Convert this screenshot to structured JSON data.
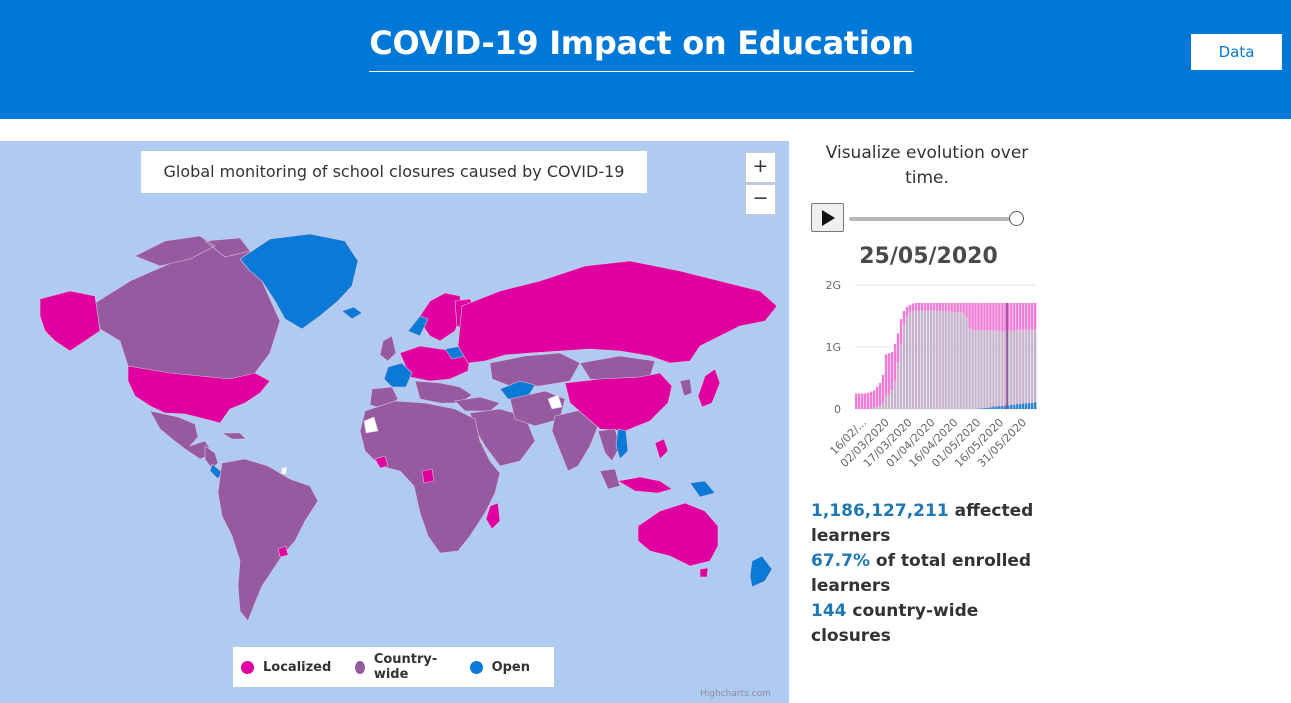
{
  "header": {
    "title": "COVID-19 Impact on Education",
    "data_button": "Data"
  },
  "map": {
    "title": "Global monitoring of school closures caused by COVID-19",
    "zoom_in": "+",
    "zoom_out": "−",
    "credits": "Highcharts.com",
    "legend": [
      {
        "label": "Localized",
        "color": "#e000a0"
      },
      {
        "label": "Country-wide",
        "color": "#955a9f"
      },
      {
        "label": "Open",
        "color": "#0a7ad6"
      }
    ],
    "colors": {
      "ocean": "#b0cbf2",
      "localized": "#e000a0",
      "country_wide": "#955a9f",
      "open": "#0a7ad6"
    }
  },
  "side": {
    "evolution_text": "Visualize evolution over time.",
    "date": "25/05/2020",
    "slider_value": 1.0
  },
  "chart_data": {
    "type": "bar",
    "y_ticks": [
      "2G",
      "1G",
      "0"
    ],
    "ylim": [
      0,
      2000000000
    ],
    "x_tick_labels": [
      "16/02/...",
      "02/03/2020",
      "17/03/2020",
      "01/04/2020",
      "16/04/2020",
      "01/05/2020",
      "16/05/2020",
      "31/05/2020"
    ],
    "series": [
      {
        "name": "Localized",
        "color": "#f07cd6"
      },
      {
        "name": "Country-wide",
        "color": "#c7b4cc"
      },
      {
        "name": "Open",
        "color": "#2a7fd0"
      }
    ],
    "points": [
      {
        "total": 0.25,
        "country_wide": 0.0,
        "open": 0.0
      },
      {
        "total": 0.25,
        "country_wide": 0.0,
        "open": 0.0
      },
      {
        "total": 0.25,
        "country_wide": 0.0,
        "open": 0.0
      },
      {
        "total": 0.25,
        "country_wide": 0.0,
        "open": 0.0
      },
      {
        "total": 0.26,
        "country_wide": 0.0,
        "open": 0.0
      },
      {
        "total": 0.28,
        "country_wide": 0.01,
        "open": 0.0
      },
      {
        "total": 0.3,
        "country_wide": 0.02,
        "open": 0.0
      },
      {
        "total": 0.36,
        "country_wide": 0.03,
        "open": 0.0
      },
      {
        "total": 0.42,
        "country_wide": 0.05,
        "open": 0.0
      },
      {
        "total": 0.55,
        "country_wide": 0.1,
        "open": 0.0
      },
      {
        "total": 0.88,
        "country_wide": 0.21,
        "open": 0.0
      },
      {
        "total": 0.9,
        "country_wide": 0.25,
        "open": 0.0
      },
      {
        "total": 0.92,
        "country_wide": 0.31,
        "open": 0.0
      },
      {
        "total": 1.05,
        "country_wide": 0.45,
        "open": 0.0
      },
      {
        "total": 1.22,
        "country_wide": 0.75,
        "open": 0.0
      },
      {
        "total": 1.45,
        "country_wide": 1.05,
        "open": 0.0
      },
      {
        "total": 1.58,
        "country_wide": 1.38,
        "open": 0.0
      },
      {
        "total": 1.65,
        "country_wide": 1.5,
        "open": 0.0
      },
      {
        "total": 1.68,
        "country_wide": 1.55,
        "open": 0.0
      },
      {
        "total": 1.7,
        "country_wide": 1.58,
        "open": 0.0
      },
      {
        "total": 1.71,
        "country_wide": 1.59,
        "open": 0.0
      },
      {
        "total": 1.71,
        "country_wide": 1.59,
        "open": 0.0
      },
      {
        "total": 1.71,
        "country_wide": 1.59,
        "open": 0.0
      },
      {
        "total": 1.71,
        "country_wide": 1.59,
        "open": 0.0
      },
      {
        "total": 1.71,
        "country_wide": 1.59,
        "open": 0.0
      },
      {
        "total": 1.71,
        "country_wide": 1.59,
        "open": 0.0
      },
      {
        "total": 1.71,
        "country_wide": 1.59,
        "open": 0.0
      },
      {
        "total": 1.71,
        "country_wide": 1.59,
        "open": 0.0
      },
      {
        "total": 1.71,
        "country_wide": 1.58,
        "open": 0.0
      },
      {
        "total": 1.71,
        "country_wide": 1.58,
        "open": 0.0
      },
      {
        "total": 1.71,
        "country_wide": 1.57,
        "open": 0.0
      },
      {
        "total": 1.71,
        "country_wide": 1.57,
        "open": 0.0
      },
      {
        "total": 1.71,
        "country_wide": 1.57,
        "open": 0.0
      },
      {
        "total": 1.71,
        "country_wide": 1.56,
        "open": 0.0
      },
      {
        "total": 1.71,
        "country_wide": 1.56,
        "open": 0.0
      },
      {
        "total": 1.71,
        "country_wide": 1.56,
        "open": 0.0
      },
      {
        "total": 1.71,
        "country_wide": 1.55,
        "open": 0.0
      },
      {
        "total": 1.71,
        "country_wide": 1.48,
        "open": 0.0
      },
      {
        "total": 1.71,
        "country_wide": 1.3,
        "open": 0.0
      },
      {
        "total": 1.71,
        "country_wide": 1.28,
        "open": 0.0
      },
      {
        "total": 1.71,
        "country_wide": 1.27,
        "open": 0.0
      },
      {
        "total": 1.71,
        "country_wide": 1.26,
        "open": 0.01
      },
      {
        "total": 1.71,
        "country_wide": 1.25,
        "open": 0.01
      },
      {
        "total": 1.71,
        "country_wide": 1.25,
        "open": 0.02
      },
      {
        "total": 1.71,
        "country_wide": 1.24,
        "open": 0.02
      },
      {
        "total": 1.71,
        "country_wide": 1.24,
        "open": 0.03
      },
      {
        "total": 1.71,
        "country_wide": 1.23,
        "open": 0.04
      },
      {
        "total": 1.71,
        "country_wide": 1.22,
        "open": 0.04
      },
      {
        "total": 1.71,
        "country_wide": 1.21,
        "open": 0.05
      },
      {
        "total": 1.71,
        "country_wide": 1.2,
        "open": 0.05
      },
      {
        "total": 1.71,
        "country_wide": 1.2,
        "open": 0.06
      },
      {
        "total": 1.71,
        "country_wide": 1.2,
        "open": 0.06
      },
      {
        "total": 1.71,
        "country_wide": 1.19,
        "open": 0.07
      },
      {
        "total": 1.71,
        "country_wide": 1.19,
        "open": 0.07
      },
      {
        "total": 1.71,
        "country_wide": 1.19,
        "open": 0.08
      },
      {
        "total": 1.71,
        "country_wide": 1.19,
        "open": 0.08
      },
      {
        "total": 1.71,
        "country_wide": 1.19,
        "open": 0.09
      },
      {
        "total": 1.71,
        "country_wide": 1.18,
        "open": 0.09
      },
      {
        "total": 1.71,
        "country_wide": 1.18,
        "open": 0.1
      },
      {
        "total": 1.71,
        "country_wide": 1.18,
        "open": 0.1
      },
      {
        "total": 1.71,
        "country_wide": 1.18,
        "open": 0.11
      }
    ],
    "points_unit": "billion learners"
  },
  "stats": {
    "affected_value": "1,186,127,211",
    "affected_label": "affected learners",
    "percent_value": "67.7%",
    "percent_label": "of total enrolled learners",
    "closures_value": "144",
    "closures_label": "country-wide closures"
  }
}
